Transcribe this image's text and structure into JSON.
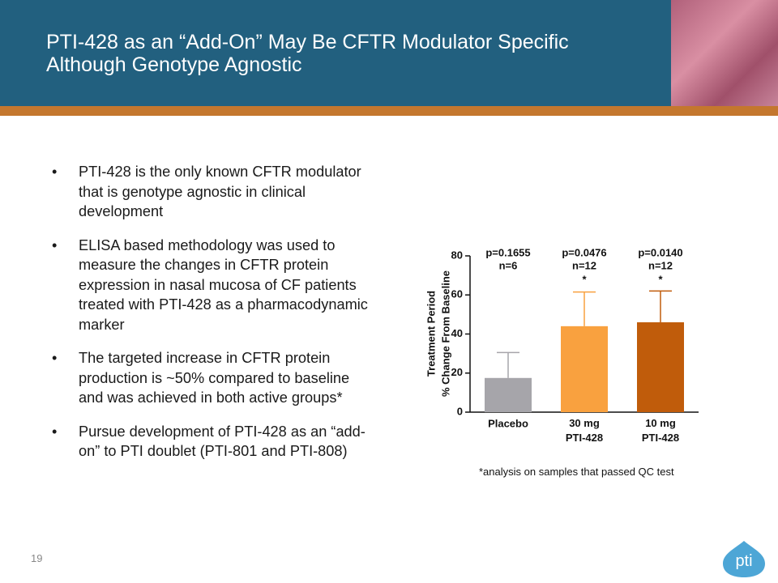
{
  "header": {
    "title_lines": [
      "PTI-428 as an “Add-On” May Be CFTR Modulator Specific",
      "Although Genotype Agnostic"
    ]
  },
  "bullets": [
    "PTI-428 is the only known CFTR modulator that is genotype agnostic in clinical development",
    "ELISA based methodology was used to measure the changes in CFTR protein expression in nasal mucosa of CF patients treated with PTI-428 as a pharmacodynamic marker",
    "The targeted increase in CFTR protein production is ~50% compared to baseline and was achieved in both active groups*",
    "Pursue development of PTI-428 as an “add-on” to PTI doublet (PTI-801 and PTI-808)"
  ],
  "chart_data": {
    "type": "bar",
    "y_label_lines": [
      "Treatment Period",
      "% Change From Baseline"
    ],
    "categories": [
      "Placebo",
      "30 mg\nPTI-428",
      "10 mg\nPTI-428"
    ],
    "values": [
      17.5,
      44,
      46
    ],
    "errors": [
      13,
      17.5,
      16
    ],
    "colors": [
      "#a6a5aa",
      "#f9a13f",
      "#c05c0b"
    ],
    "annotations": [
      {
        "p": "p=0.1655",
        "n": "n=6"
      },
      {
        "p": "p=0.0476",
        "n": "n=12",
        "sig": "*"
      },
      {
        "p": "p=0.0140",
        "n": "n=12",
        "sig": "*"
      }
    ],
    "ylim": [
      0,
      80
    ],
    "yticks": [
      0,
      20,
      40,
      60,
      80
    ]
  },
  "footnote": "*analysis on samples that passed QC test",
  "page_number": "19",
  "logo": "pti"
}
